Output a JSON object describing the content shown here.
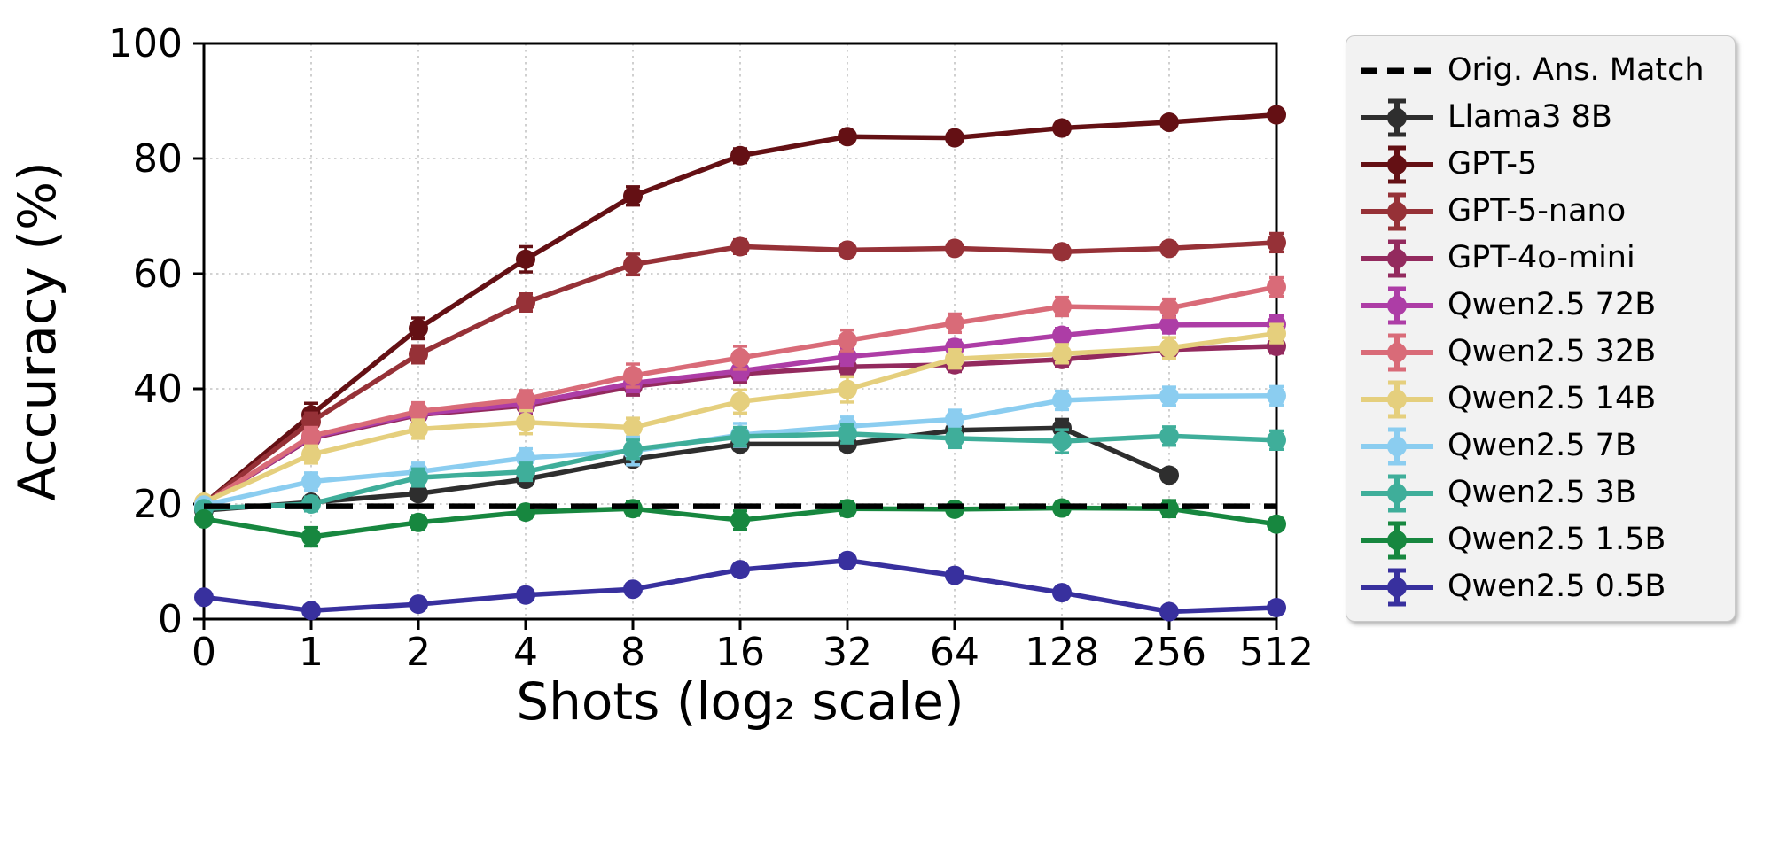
{
  "chart_data": {
    "type": "line",
    "title": "",
    "xlabel": "Shots (log₂ scale)",
    "ylabel": "Accuracy (%)",
    "x_tick_labels": [
      "0",
      "1",
      "2",
      "4",
      "8",
      "16",
      "32",
      "64",
      "128",
      "256",
      "512"
    ],
    "y_ticks": [
      0,
      20,
      40,
      60,
      80,
      100
    ],
    "ylim": [
      0,
      100
    ],
    "grid": true,
    "legend_position": "outside-right",
    "reference_line": {
      "label": "Orig. Ans. Match",
      "value": 19.6,
      "color": "#000000",
      "style": "dashed"
    },
    "series": [
      {
        "name": "Llama3 8B",
        "color": "#2e2e2e",
        "values": [
          18.9,
          20.3,
          21.8,
          24.3,
          27.8,
          30.4,
          30.4,
          32.8,
          33.2,
          25.0,
          null
        ],
        "err": [
          0.5,
          0.5,
          1.0,
          1.0,
          1.0,
          1.0,
          1.0,
          1.0,
          1.5,
          1.0,
          null
        ]
      },
      {
        "name": "GPT-5",
        "color": "#641014",
        "values": [
          20.0,
          35.5,
          50.5,
          62.5,
          73.5,
          80.5,
          83.8,
          83.6,
          85.3,
          86.3,
          87.6
        ],
        "err": [
          0.5,
          2.0,
          1.8,
          2.2,
          1.6,
          1.2,
          0.9,
          0.9,
          0.9,
          0.9,
          0.9
        ]
      },
      {
        "name": "GPT-5-nano",
        "color": "#963137",
        "values": [
          20.0,
          34.3,
          46.0,
          55.0,
          61.6,
          64.7,
          64.1,
          64.4,
          63.8,
          64.4,
          65.4
        ],
        "err": [
          0.5,
          1.5,
          1.5,
          1.5,
          1.8,
          1.2,
          1.0,
          1.0,
          1.0,
          1.0,
          1.6
        ]
      },
      {
        "name": "GPT-4o-mini",
        "color": "#932a5e",
        "values": [
          20.0,
          31.4,
          35.5,
          37.1,
          40.4,
          42.6,
          43.8,
          44.2,
          45.1,
          46.8,
          47.4
        ],
        "err": [
          0.5,
          1.4,
          1.4,
          1.4,
          1.5,
          1.5,
          1.5,
          1.2,
          1.2,
          1.2,
          1.2
        ]
      },
      {
        "name": "Qwen2.5 72B",
        "color": "#ad3da6",
        "values": [
          20.0,
          31.6,
          35.7,
          37.4,
          41.0,
          43.1,
          45.6,
          47.2,
          49.3,
          51.1,
          51.2
        ],
        "err": [
          0.5,
          1.4,
          1.4,
          1.4,
          1.5,
          1.5,
          1.5,
          1.2,
          1.2,
          1.4,
          1.5
        ]
      },
      {
        "name": "Qwen2.5 32B",
        "color": "#d96b78",
        "values": [
          20.0,
          31.8,
          36.1,
          38.2,
          42.3,
          45.4,
          48.4,
          51.4,
          54.3,
          54.0,
          57.7
        ],
        "err": [
          0.5,
          1.5,
          1.5,
          1.5,
          2.0,
          2.0,
          1.8,
          1.6,
          1.6,
          1.6,
          1.6
        ]
      },
      {
        "name": "Qwen2.5 14B",
        "color": "#e5cf7d",
        "values": [
          20.3,
          28.6,
          33.0,
          34.2,
          33.3,
          37.8,
          39.9,
          45.2,
          46.1,
          47.1,
          49.6
        ],
        "err": [
          0.5,
          1.5,
          1.6,
          2.0,
          1.6,
          2.0,
          2.2,
          1.6,
          1.6,
          1.8,
          1.6
        ]
      },
      {
        "name": "Qwen2.5 7B",
        "color": "#8bcdf0",
        "values": [
          19.8,
          23.9,
          25.6,
          28.0,
          29.2,
          32.0,
          33.5,
          34.7,
          38.0,
          38.7,
          38.8
        ],
        "err": [
          0.5,
          1.5,
          1.5,
          1.6,
          2.4,
          2.0,
          1.6,
          1.6,
          1.6,
          1.6,
          1.6
        ]
      },
      {
        "name": "Qwen2.5 3B",
        "color": "#3fae9a",
        "values": [
          19.2,
          20.0,
          24.6,
          25.6,
          29.5,
          31.7,
          32.2,
          31.4,
          30.9,
          31.8,
          31.1
        ],
        "err": [
          0.5,
          1.2,
          1.5,
          1.5,
          1.6,
          1.6,
          1.6,
          1.6,
          2.0,
          1.6,
          1.6
        ]
      },
      {
        "name": "Qwen2.5 1.5B",
        "color": "#17873f",
        "values": [
          17.4,
          14.3,
          16.8,
          18.6,
          19.2,
          17.2,
          19.2,
          19.1,
          19.3,
          19.2,
          16.5
        ],
        "err": [
          0.5,
          1.6,
          1.2,
          1.0,
          1.2,
          1.6,
          1.2,
          1.0,
          1.0,
          1.4,
          1.0
        ]
      },
      {
        "name": "Qwen2.5 0.5B",
        "color": "#38309e",
        "values": [
          3.8,
          1.5,
          2.6,
          4.2,
          5.2,
          8.6,
          10.2,
          7.6,
          4.6,
          1.3,
          2.0
        ],
        "err": [
          0.4,
          0.4,
          0.4,
          0.5,
          0.5,
          0.8,
          0.8,
          0.8,
          0.5,
          0.4,
          0.4
        ]
      }
    ],
    "legend_entries": [
      "Orig. Ans. Match",
      "Llama3 8B",
      "GPT-5",
      "GPT-5-nano",
      "GPT-4o-mini",
      "Qwen2.5 72B",
      "Qwen2.5 32B",
      "Qwen2.5 14B",
      "Qwen2.5 7B",
      "Qwen2.5 3B",
      "Qwen2.5 1.5B",
      "Qwen2.5 0.5B"
    ],
    "colors": {
      "grid": "#c4c4c4",
      "axis": "#000000",
      "legend_bg": "#f2f2f2",
      "legend_border": "#c9c9c9",
      "background": "#ffffff"
    }
  }
}
